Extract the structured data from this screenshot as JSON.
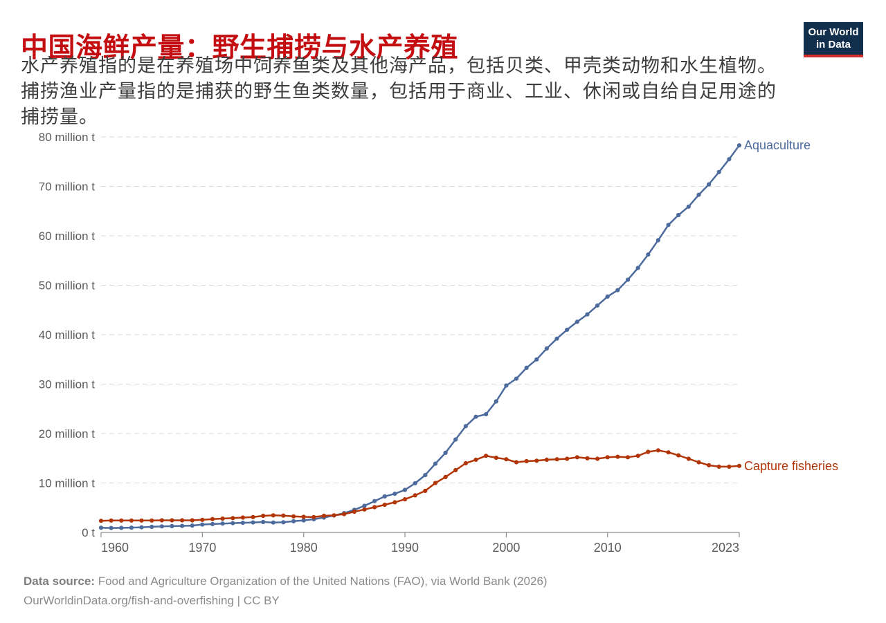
{
  "header": {
    "title": "中国海鲜产量：野生捕捞与水产养殖",
    "subtitle": "水产养殖指的是在养殖场中饲养鱼类及其他海产品，包括贝类、甲壳类动物和水生植物。捕捞渔业产量指的是捕获的野生鱼类数量，包括用于商业、工业、休闲或自给自足用途的捕捞量。",
    "title_color": "#c40d11"
  },
  "logo": {
    "line1": "Our World",
    "line2": "in Data",
    "background": "#132f4e",
    "accent": "#d42b2f"
  },
  "chart_data": {
    "type": "line",
    "title": "中国海鲜产量：野生捕捞与水产养殖",
    "xlabel": "",
    "ylabel": "million tonnes",
    "ylim": [
      0,
      80
    ],
    "ytick_interval": 10,
    "ytick_labels": [
      "0 t",
      "10 million t",
      "20 million t",
      "30 million t",
      "40 million t",
      "50 million t",
      "60 million t",
      "70 million t",
      "80 million t"
    ],
    "xticks": [
      1960,
      1970,
      1980,
      1990,
      2000,
      2010,
      2023
    ],
    "x_range": [
      1960,
      2023
    ],
    "grid": "horizontal-dashed",
    "legend_position": "end-of-line-labels",
    "x": [
      1960,
      1961,
      1962,
      1963,
      1964,
      1965,
      1966,
      1967,
      1968,
      1969,
      1970,
      1971,
      1972,
      1973,
      1974,
      1975,
      1976,
      1977,
      1978,
      1979,
      1980,
      1981,
      1982,
      1983,
      1984,
      1985,
      1986,
      1987,
      1988,
      1989,
      1990,
      1991,
      1992,
      1993,
      1994,
      1995,
      1996,
      1997,
      1998,
      1999,
      2000,
      2001,
      2002,
      2003,
      2004,
      2005,
      2006,
      2007,
      2008,
      2009,
      2010,
      2011,
      2012,
      2013,
      2014,
      2015,
      2016,
      2017,
      2018,
      2019,
      2020,
      2021,
      2022,
      2023
    ],
    "series": [
      {
        "name": "Aquaculture",
        "color": "#4c6a9c",
        "unit": "million t",
        "values": [
          0.95,
          0.9,
          0.92,
          0.97,
          1.03,
          1.13,
          1.21,
          1.27,
          1.32,
          1.39,
          1.59,
          1.69,
          1.79,
          1.87,
          1.94,
          2.02,
          2.1,
          2.0,
          2.05,
          2.27,
          2.44,
          2.67,
          3.01,
          3.43,
          3.9,
          4.58,
          5.39,
          6.33,
          7.28,
          7.82,
          8.6,
          9.95,
          11.6,
          13.9,
          16.1,
          18.8,
          21.5,
          23.4,
          23.9,
          26.5,
          29.7,
          31.1,
          33.3,
          35.0,
          37.2,
          39.2,
          41.0,
          42.6,
          44.1,
          45.9,
          47.7,
          49.0,
          51.1,
          53.5,
          56.2,
          59.1,
          62.2,
          64.2,
          65.9,
          68.3,
          70.4,
          72.9,
          75.5,
          78.3
        ]
      },
      {
        "name": "Capture fisheries",
        "color": "#b13507",
        "unit": "million t",
        "values": [
          2.35,
          2.4,
          2.4,
          2.4,
          2.4,
          2.4,
          2.45,
          2.45,
          2.45,
          2.45,
          2.55,
          2.7,
          2.8,
          2.9,
          3.0,
          3.1,
          3.35,
          3.45,
          3.4,
          3.25,
          3.15,
          3.1,
          3.35,
          3.45,
          3.7,
          4.2,
          4.65,
          5.1,
          5.6,
          6.1,
          6.7,
          7.5,
          8.4,
          10.0,
          11.2,
          12.6,
          14.0,
          14.7,
          15.5,
          15.1,
          14.8,
          14.2,
          14.4,
          14.5,
          14.7,
          14.8,
          14.9,
          15.2,
          15.0,
          14.9,
          15.2,
          15.3,
          15.2,
          15.5,
          16.3,
          16.6,
          16.2,
          15.6,
          14.9,
          14.2,
          13.6,
          13.3,
          13.3,
          13.45
        ]
      }
    ]
  },
  "footer": {
    "source_label": "Data source:",
    "source_text": " Food and Agriculture Organization of the United Nations (FAO), via World Bank (2026)",
    "license_line": "OurWorldinData.org/fish-and-overfishing | CC BY"
  }
}
